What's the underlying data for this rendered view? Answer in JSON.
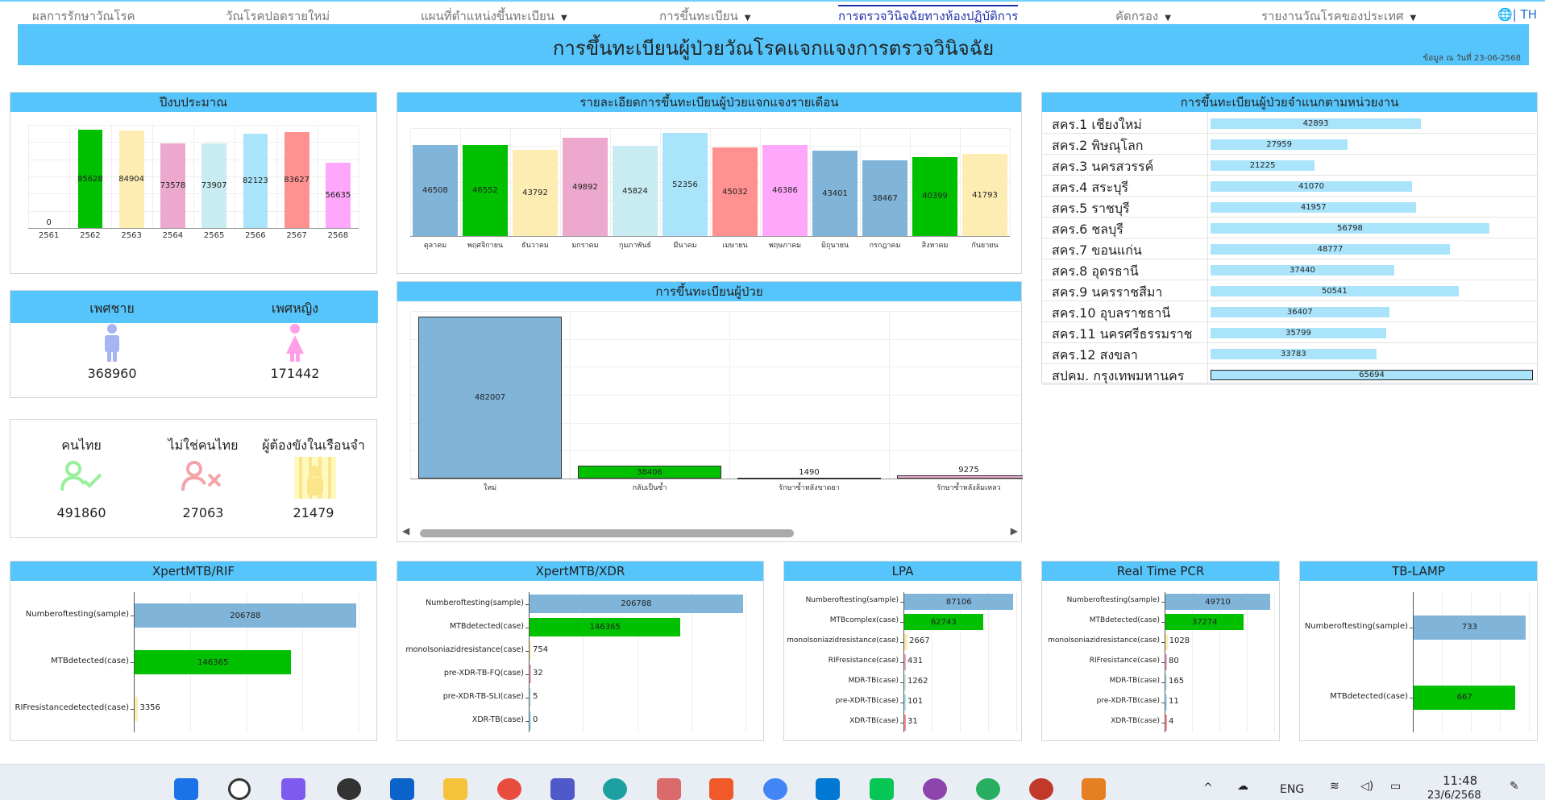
{
  "nav": {
    "items": [
      {
        "label": "ผลการรักษาวัณโรค",
        "dropdown": false
      },
      {
        "label": "วัณโรคปอดรายใหม่",
        "dropdown": false
      },
      {
        "label": "แผนที่ตำแหน่งขึ้นทะเบียน",
        "dropdown": true
      },
      {
        "label": "การขึ้นทะเบียน",
        "dropdown": true
      },
      {
        "label": "การตรวจวินิจฉัยทางห้องปฏิบัติการ",
        "dropdown": false,
        "active": true
      },
      {
        "label": "คัดกรอง",
        "dropdown": true
      },
      {
        "label": "รายงานวัณโรคของประเทศ",
        "dropdown": true
      }
    ],
    "lang": "| TH"
  },
  "banner": {
    "title": "การขึ้นทะเบียนผู้ป่วยวัณโรคแจกแจงการตรวจวินิจฉัย",
    "date": "ข้อมูล ณ วันที่ 23-06-2568"
  },
  "panels": {
    "fiscal_year": "ปีงบประมาณ",
    "monthly": "รายละเอียดการขึ้นทะเบียนผู้ป่วยแจกแจงรายเดือน",
    "region": "การขึ้นทะเบียนผู้ป่วยจำแนกตามหน่วยงาน",
    "registration": "การขึ้นทะเบียนผู้ป่วย",
    "xpert_rif": "XpertMTB/RIF",
    "xpert_xdr": "XpertMTB/XDR",
    "lpa": "LPA",
    "rt_pcr": "Real Time PCR",
    "tb_lamp": "TB-LAMP"
  },
  "gender": {
    "male_label": "เพศชาย",
    "male_value": "368960",
    "female_label": "เพศหญิง",
    "female_value": "171442"
  },
  "nationality": {
    "thai_label": "คนไทย",
    "thai_value": "491860",
    "nonthai_label": "ไม่ใช่คนไทย",
    "nonthai_value": "27063",
    "prisoner_label": "ผู้ต้องขังในเรือนจำ",
    "prisoner_value": "21479"
  },
  "colors": {
    "accent": "#56c5fb",
    "green": "#00c000",
    "blue": "#80b5d9",
    "yellow": "#fdedb3",
    "pink": "#eda8ce",
    "lightcyan": "#c8ecf1",
    "skyblue": "#a9e4fb",
    "salmon": "#ff9190",
    "magenta": "#ffa7fb"
  },
  "chart_data": [
    {
      "id": "fiscal",
      "type": "bar",
      "categories": [
        "2561",
        "2562",
        "2563",
        "2564",
        "2565",
        "2566",
        "2567",
        "2568"
      ],
      "values": [
        0,
        85628,
        84904,
        73578,
        73907,
        82123,
        83627,
        56635
      ],
      "colors": [
        "#80b5d9",
        "#00c000",
        "#fdedb3",
        "#eda8ce",
        "#c8ecf1",
        "#a9e4fb",
        "#ff9190",
        "#ffa7fb"
      ],
      "ylim": [
        0,
        90000
      ]
    },
    {
      "id": "monthly",
      "type": "bar",
      "categories": [
        "ตุลาคม",
        "พฤศจิกายน",
        "ธันวาคม",
        "มกราคม",
        "กุมภาพันธ์",
        "มีนาคม",
        "เมษายน",
        "พฤษภาคม",
        "มิถุนายน",
        "กรกฎาคม",
        "สิงหาคม",
        "กันยายน"
      ],
      "values": [
        46508,
        46552,
        43792,
        49892,
        45824,
        52356,
        45032,
        46386,
        43401,
        38467,
        40399,
        41793
      ],
      "colors": [
        "#80b5d9",
        "#00c000",
        "#fdedb3",
        "#eda8ce",
        "#c8ecf1",
        "#a9e4fb",
        "#ff9190",
        "#ffa7fb",
        "#80b5d9",
        "#80b5d9",
        "#00c000",
        "#fdedb3"
      ],
      "ylim": [
        0,
        55000
      ]
    },
    {
      "id": "registration",
      "type": "bar",
      "categories": [
        "ใหม่",
        "กลับเป็นซ้ำ",
        "รักษาซ้ำหลังขาดยา",
        "รักษาซ้ำหลังล้มเหลว"
      ],
      "values": [
        482007,
        38406,
        1490,
        9275
      ],
      "colors": [
        "#80b5d9",
        "#00c000",
        "#fdedb3",
        "#eda8ce"
      ],
      "ylim": [
        0,
        500000
      ]
    },
    {
      "id": "region",
      "type": "bar",
      "categories": [
        "สคร.1 เชียงใหม่",
        "สคร.2 พิษณุโลก",
        "สคร.3 นครสวรรค์",
        "สคร.4 สระบุรี",
        "สคร.5 ราชบุรี",
        "สคร.6 ชลบุรี",
        "สคร.7 ขอนแก่น",
        "สคร.8 อุดรธานี",
        "สคร.9 นครราชสีมา",
        "สคร.10 อุบลราชธานี",
        "สคร.11 นครศรีธรรมราช",
        "สคร.12 สงขลา",
        "สปคม. กรุงเทพมหานคร"
      ],
      "values": [
        42893,
        27959,
        21225,
        41070,
        41957,
        56798,
        48777,
        37440,
        50541,
        36407,
        35799,
        33783,
        65694
      ],
      "xlim": [
        0,
        65694
      ]
    },
    {
      "id": "xpert_rif",
      "type": "bar",
      "categories": [
        "Numberoftesting(sample)",
        "MTBdetected(case)",
        "RIFresistancedetected(case)"
      ],
      "values": [
        206788,
        146365,
        3356
      ],
      "colors": [
        "#80b5d9",
        "#00c000",
        "#fdedb3"
      ],
      "xlim": [
        0,
        210000
      ]
    },
    {
      "id": "xpert_xdr",
      "type": "bar",
      "categories": [
        "Numberoftesting(sample)",
        "MTBdetected(case)",
        "monoIsoniazidresistance(case)",
        "pre-XDR-TB-FQ(case)",
        "pre-XDR-TB-SLI(case)",
        "XDR-TB(case)"
      ],
      "values": [
        206788,
        146365,
        754,
        32,
        5,
        0
      ],
      "colors": [
        "#80b5d9",
        "#00c000",
        "#fdedb3",
        "#eda8ce",
        "#c8ecf1",
        "#a9e4fb"
      ],
      "xlim": [
        0,
        210000
      ]
    },
    {
      "id": "lpa",
      "type": "bar",
      "categories": [
        "Numberoftesting(sample)",
        "MTBcomplex(case)",
        "monoIsoniazidresistance(case)",
        "RIFresistance(case)",
        "MDR-TB(case)",
        "pre-XDR-TB(case)",
        "XDR-TB(case)"
      ],
      "values": [
        87106,
        62743,
        2667,
        431,
        1262,
        101,
        31
      ],
      "colors": [
        "#80b5d9",
        "#00c000",
        "#fdedb3",
        "#eda8ce",
        "#c8ecf1",
        "#a9e4fb",
        "#ff9190"
      ],
      "xlim": [
        0,
        90000
      ]
    },
    {
      "id": "rt_pcr",
      "type": "bar",
      "categories": [
        "Numberoftesting(sample)",
        "MTBdetected(case)",
        "monoIsoniazidresistance(case)",
        "RIFresistance(case)",
        "MDR-TB(case)",
        "pre-XDR-TB(case)",
        "XDR-TB(case)"
      ],
      "values": [
        49710,
        37274,
        1028,
        80,
        165,
        11,
        4
      ],
      "colors": [
        "#80b5d9",
        "#00c000",
        "#fdedb3",
        "#eda8ce",
        "#c8ecf1",
        "#a9e4fb",
        "#ff9190"
      ],
      "xlim": [
        0,
        52000
      ]
    },
    {
      "id": "tb_lamp",
      "type": "bar",
      "categories": [
        "Numberoftesting(sample)",
        "MTBdetected(case)"
      ],
      "values": [
        733,
        667
      ],
      "colors": [
        "#80b5d9",
        "#00c000"
      ],
      "xlim": [
        0,
        760
      ]
    }
  ],
  "taskbar": {
    "lang": "ENG",
    "time": "11:48",
    "date": "23/6/2568"
  }
}
